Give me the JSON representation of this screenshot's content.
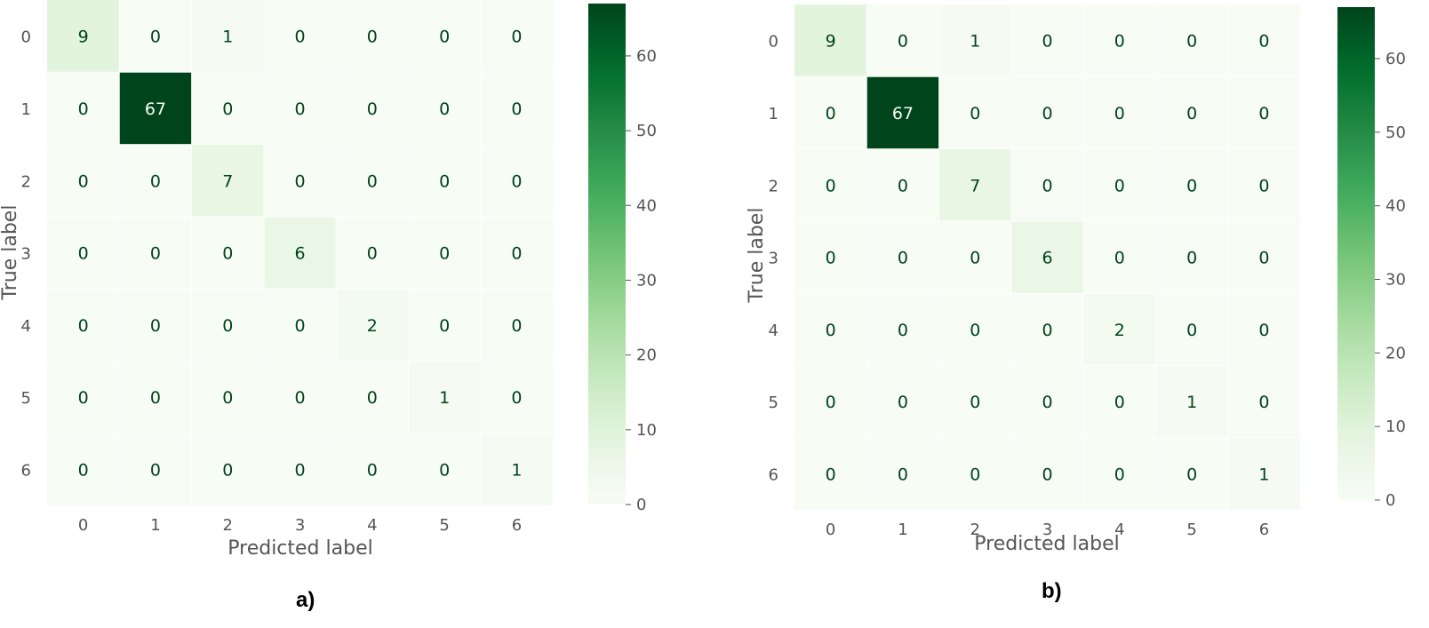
{
  "chart_data": [
    {
      "type": "heatmap",
      "panel_label": "a)",
      "xlabel": "Predicted label",
      "ylabel": "True label",
      "x_ticks": [
        "0",
        "1",
        "2",
        "3",
        "4",
        "5",
        "6"
      ],
      "y_ticks": [
        "0",
        "1",
        "2",
        "3",
        "4",
        "5",
        "6"
      ],
      "matrix": [
        [
          9,
          0,
          1,
          0,
          0,
          0,
          0
        ],
        [
          0,
          67,
          0,
          0,
          0,
          0,
          0
        ],
        [
          0,
          0,
          7,
          0,
          0,
          0,
          0
        ],
        [
          0,
          0,
          0,
          6,
          0,
          0,
          0
        ],
        [
          0,
          0,
          0,
          0,
          2,
          0,
          0
        ],
        [
          0,
          0,
          0,
          0,
          0,
          1,
          0
        ],
        [
          0,
          0,
          0,
          0,
          0,
          0,
          1
        ]
      ],
      "vmin": 0,
      "vmax": 67,
      "colormap": "Greens",
      "colorbar_ticks": [
        0,
        10,
        20,
        30,
        40,
        50,
        60
      ]
    },
    {
      "type": "heatmap",
      "panel_label": "b)",
      "xlabel": "Predicted label",
      "ylabel": "True label",
      "x_ticks": [
        "0",
        "1",
        "2",
        "3",
        "4",
        "5",
        "6"
      ],
      "y_ticks": [
        "0",
        "1",
        "2",
        "3",
        "4",
        "5",
        "6"
      ],
      "matrix": [
        [
          9,
          0,
          1,
          0,
          0,
          0,
          0
        ],
        [
          0,
          67,
          0,
          0,
          0,
          0,
          0
        ],
        [
          0,
          0,
          7,
          0,
          0,
          0,
          0
        ],
        [
          0,
          0,
          0,
          6,
          0,
          0,
          0
        ],
        [
          0,
          0,
          0,
          0,
          2,
          0,
          0
        ],
        [
          0,
          0,
          0,
          0,
          0,
          1,
          0
        ],
        [
          0,
          0,
          0,
          0,
          0,
          0,
          1
        ]
      ],
      "vmin": 0,
      "vmax": 67,
      "colormap": "Greens",
      "colorbar_ticks": [
        0,
        10,
        20,
        30,
        40,
        50,
        60
      ]
    }
  ],
  "colors": {
    "text_dark_cell": "#00441b",
    "text_light_cell": "#f7fcf5",
    "grid": "#ffffff",
    "tick_text": "#555555"
  }
}
